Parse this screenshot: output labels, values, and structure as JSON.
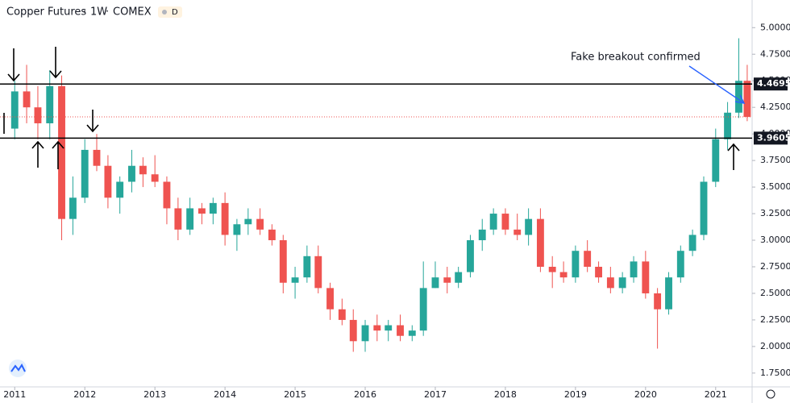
{
  "chart_data": {
    "type": "candlestick",
    "title": "Copper Futures",
    "interval": "1W",
    "exchange": "COMEX",
    "badge": "D",
    "annotation": "Fake breakout confirmed",
    "up_color": "#26a69a",
    "down_color": "#ef5350",
    "xlim": [
      2010.79,
      2021.52
    ],
    "ylim": [
      1.62,
      5.26
    ],
    "xticks": [
      2011,
      2012,
      2013,
      2014,
      2015,
      2016,
      2017,
      2018,
      2019,
      2020,
      2021
    ],
    "yticks": [
      {
        "value": 1.75,
        "label": "1.7500"
      },
      {
        "value": 2,
        "label": "2.0000"
      },
      {
        "value": 2.25,
        "label": "2.2500"
      },
      {
        "value": 2.5,
        "label": "2.5000"
      },
      {
        "value": 2.75,
        "label": "2.7500"
      },
      {
        "value": 3,
        "label": "3.0000"
      },
      {
        "value": 3.25,
        "label": "3.2500"
      },
      {
        "value": 3.5,
        "label": "3.5000"
      },
      {
        "value": 3.75,
        "label": "3.7500"
      },
      {
        "value": 4,
        "label": "4.0000"
      },
      {
        "value": 4.25,
        "label": "4.2500"
      },
      {
        "value": 4.5,
        "label": "4.5000"
      },
      {
        "value": 4.75,
        "label": "4.7500"
      },
      {
        "value": 5,
        "label": "5.0000"
      }
    ],
    "levels": [
      4.4695,
      3.9605
    ],
    "last_price": 4.16,
    "x": [
      2011.0,
      2011.17,
      2011.33,
      2011.5,
      2011.67,
      2011.83,
      2012.0,
      2012.17,
      2012.33,
      2012.5,
      2012.67,
      2012.83,
      2013.0,
      2013.17,
      2013.33,
      2013.5,
      2013.67,
      2013.83,
      2014.0,
      2014.17,
      2014.33,
      2014.5,
      2014.67,
      2014.83,
      2015.0,
      2015.17,
      2015.33,
      2015.5,
      2015.67,
      2015.83,
      2016.0,
      2016.17,
      2016.33,
      2016.5,
      2016.67,
      2016.83,
      2017.0,
      2017.17,
      2017.33,
      2017.5,
      2017.67,
      2017.83,
      2018.0,
      2018.17,
      2018.33,
      2018.5,
      2018.67,
      2018.83,
      2019.0,
      2019.17,
      2019.33,
      2019.5,
      2019.67,
      2019.83,
      2020.0,
      2020.17,
      2020.33,
      2020.5,
      2020.67,
      2020.83,
      2021.0,
      2021.17,
      2021.33,
      2021.45
    ],
    "open": [
      4.05,
      4.4,
      4.25,
      4.1,
      4.45,
      3.2,
      3.4,
      3.85,
      3.7,
      3.4,
      3.55,
      3.7,
      3.62,
      3.55,
      3.3,
      3.1,
      3.3,
      3.25,
      3.35,
      3.05,
      3.15,
      3.2,
      3.1,
      3.0,
      2.6,
      2.65,
      2.85,
      2.55,
      2.35,
      2.25,
      2.05,
      2.2,
      2.15,
      2.2,
      2.1,
      2.15,
      2.55,
      2.65,
      2.6,
      2.7,
      3.0,
      3.1,
      3.25,
      3.1,
      3.05,
      3.2,
      2.75,
      2.7,
      2.65,
      2.9,
      2.75,
      2.65,
      2.55,
      2.65,
      2.8,
      2.5,
      2.35,
      2.65,
      2.9,
      3.05,
      3.55,
      3.95,
      4.2,
      4.5
    ],
    "high": [
      4.5,
      4.65,
      4.45,
      4.6,
      4.55,
      3.6,
      3.95,
      4.0,
      3.8,
      3.6,
      3.85,
      3.78,
      3.8,
      3.6,
      3.4,
      3.4,
      3.35,
      3.4,
      3.45,
      3.2,
      3.3,
      3.3,
      3.15,
      3.05,
      2.75,
      2.95,
      2.95,
      2.6,
      2.45,
      2.35,
      2.25,
      2.3,
      2.25,
      2.3,
      2.2,
      2.8,
      2.8,
      2.75,
      2.75,
      3.05,
      3.2,
      3.3,
      3.3,
      3.25,
      3.3,
      3.3,
      2.85,
      2.8,
      2.95,
      3.0,
      2.8,
      2.75,
      2.7,
      2.85,
      2.9,
      2.55,
      2.7,
      2.95,
      3.1,
      3.6,
      4.05,
      4.3,
      4.9,
      4.65
    ],
    "low": [
      3.95,
      4.1,
      3.95,
      3.95,
      3.0,
      3.05,
      3.35,
      3.65,
      3.3,
      3.25,
      3.45,
      3.5,
      3.5,
      3.15,
      3.0,
      3.05,
      3.15,
      3.15,
      2.95,
      2.9,
      3.05,
      3.05,
      2.95,
      2.5,
      2.45,
      2.6,
      2.5,
      2.25,
      2.2,
      1.95,
      1.95,
      2.05,
      2.05,
      2.05,
      2.05,
      2.1,
      2.55,
      2.5,
      2.55,
      2.65,
      2.9,
      3.05,
      3.05,
      3.0,
      2.95,
      2.7,
      2.55,
      2.6,
      2.6,
      2.7,
      2.6,
      2.5,
      2.5,
      2.6,
      2.45,
      1.98,
      2.3,
      2.6,
      2.85,
      3.0,
      3.5,
      3.85,
      4.15,
      4.12
    ],
    "close": [
      4.4,
      4.25,
      4.1,
      4.45,
      3.2,
      3.4,
      3.85,
      3.7,
      3.4,
      3.55,
      3.7,
      3.62,
      3.55,
      3.3,
      3.1,
      3.3,
      3.25,
      3.35,
      3.05,
      3.15,
      3.2,
      3.1,
      3.0,
      2.6,
      2.65,
      2.85,
      2.55,
      2.35,
      2.25,
      2.05,
      2.2,
      2.15,
      2.2,
      2.1,
      2.15,
      2.55,
      2.65,
      2.6,
      2.7,
      3.0,
      3.1,
      3.25,
      3.1,
      3.05,
      3.2,
      2.75,
      2.7,
      2.65,
      2.9,
      2.75,
      2.65,
      2.55,
      2.65,
      2.8,
      2.5,
      2.35,
      2.65,
      2.9,
      3.05,
      3.55,
      3.95,
      4.2,
      4.5,
      4.16
    ]
  }
}
